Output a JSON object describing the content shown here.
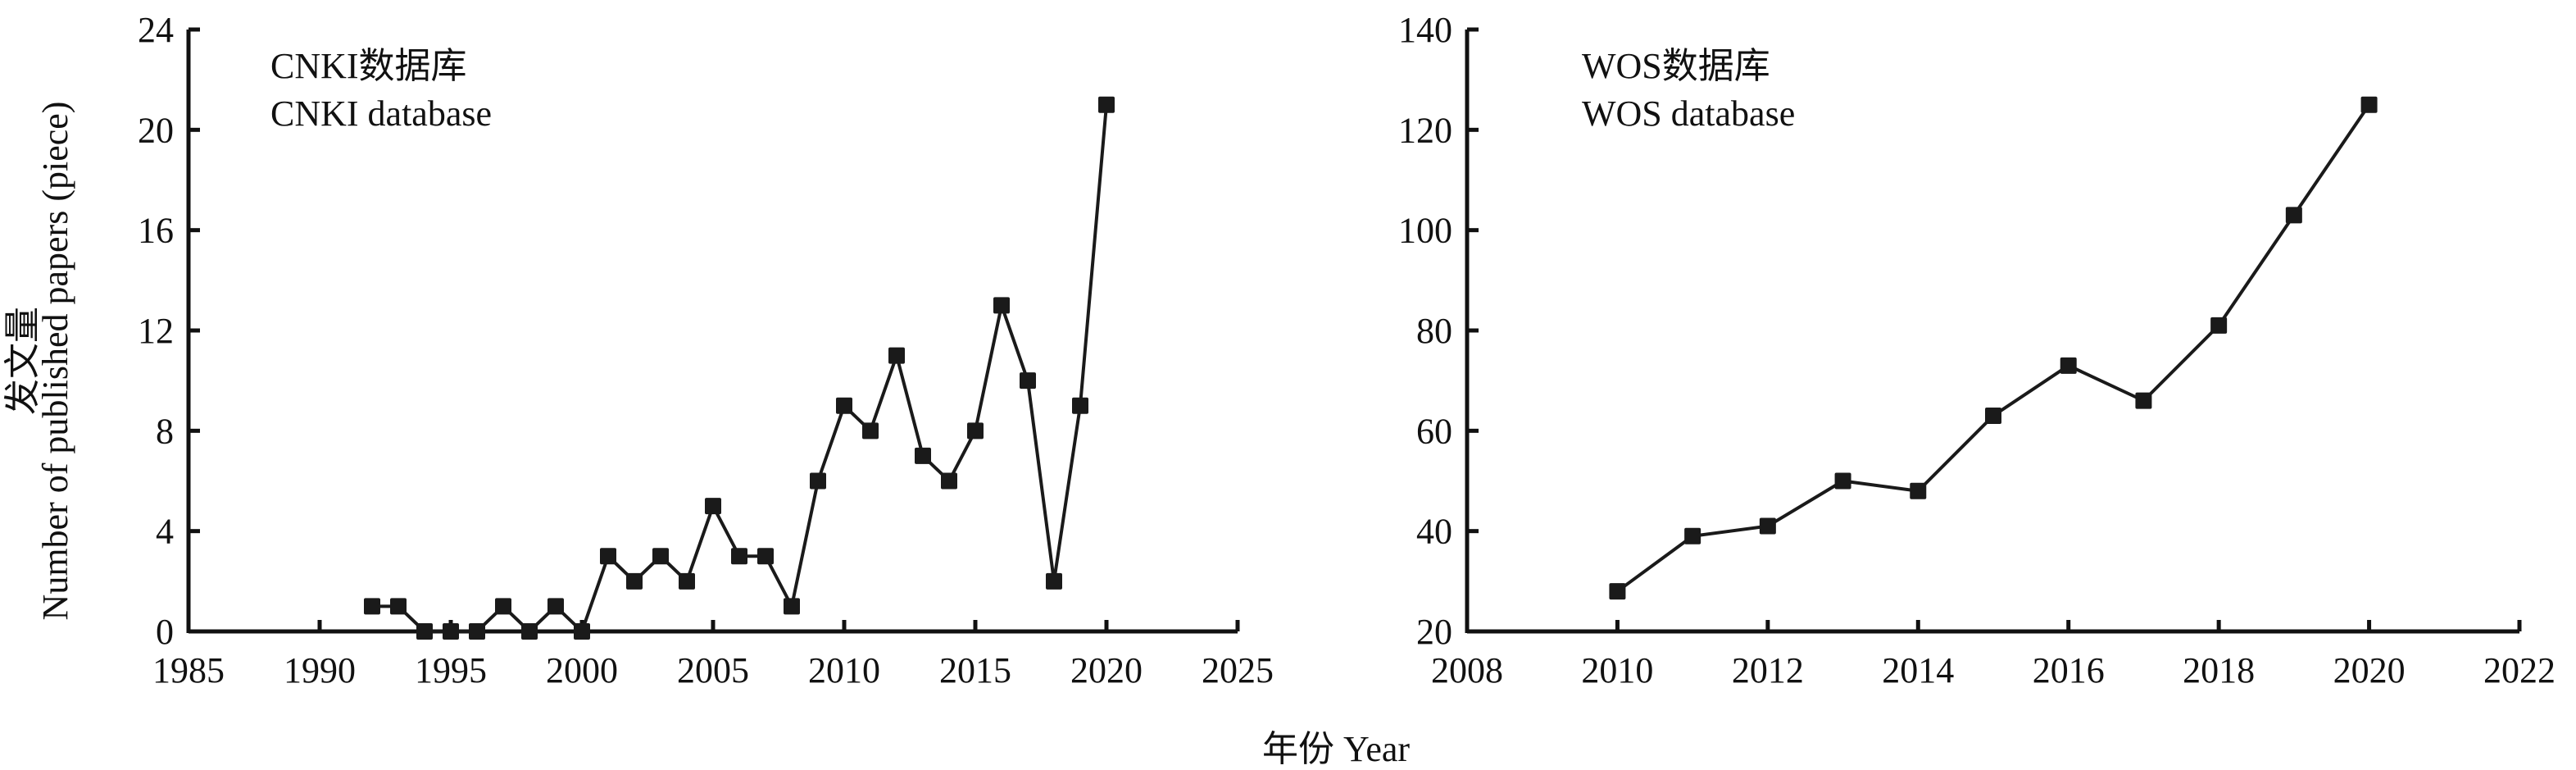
{
  "chart_data": [
    {
      "type": "line",
      "title_cn": "CNKI数据库",
      "title": "CNKI database",
      "xlabel": "年份 Year",
      "ylabel_cn": "发文量",
      "ylabel": "Number of published papers (piece)",
      "xlim": [
        1985,
        2025
      ],
      "ylim": [
        0,
        24
      ],
      "xticks": [
        1985,
        1990,
        1995,
        2000,
        2005,
        2010,
        2015,
        2020,
        2025
      ],
      "yticks": [
        0,
        4,
        8,
        12,
        16,
        20,
        24
      ],
      "grid": false,
      "x": [
        1992,
        1993,
        1994,
        1995,
        1996,
        1997,
        1998,
        1999,
        2000,
        2001,
        2002,
        2003,
        2004,
        2005,
        2006,
        2007,
        2008,
        2009,
        2010,
        2011,
        2012,
        2013,
        2014,
        2015,
        2016,
        2017,
        2018,
        2019,
        2020
      ],
      "values": [
        1,
        1,
        0,
        0,
        0,
        1,
        0,
        1,
        0,
        3,
        2,
        3,
        2,
        5,
        3,
        3,
        1,
        6,
        9,
        8,
        11,
        7,
        6,
        8,
        13,
        10,
        2,
        9,
        21
      ],
      "color": "#1a1a1a"
    },
    {
      "type": "line",
      "title_cn": "WOS数据库",
      "title": "WOS database",
      "xlim": [
        2008,
        2022
      ],
      "ylim": [
        20,
        140
      ],
      "xticks": [
        2008,
        2010,
        2012,
        2014,
        2016,
        2018,
        2020,
        2022
      ],
      "yticks": [
        20,
        40,
        60,
        80,
        100,
        120,
        140
      ],
      "grid": false,
      "x": [
        2010,
        2011,
        2012,
        2013,
        2014,
        2015,
        2016,
        2017,
        2018,
        2019,
        2020
      ],
      "values": [
        28,
        39,
        41,
        50,
        48,
        63,
        73,
        66,
        81,
        103,
        125
      ],
      "color": "#1a1a1a"
    }
  ]
}
